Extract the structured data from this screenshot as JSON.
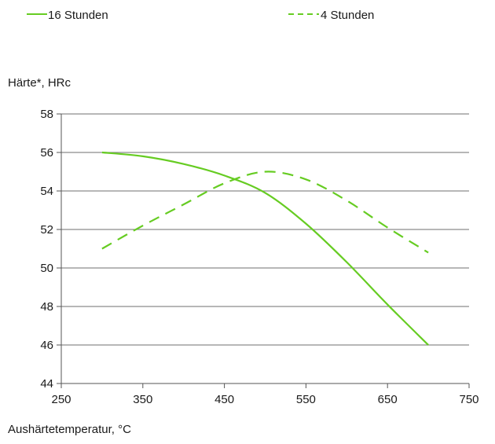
{
  "chart_data": {
    "type": "line",
    "ylabel": "Härte*, HRc",
    "xlabel": "Aushärtetemperatur, °C",
    "xlim": [
      250,
      750
    ],
    "ylim": [
      44,
      58
    ],
    "x_ticks": [
      250,
      350,
      450,
      550,
      650,
      750
    ],
    "y_ticks": [
      44,
      46,
      48,
      50,
      52,
      54,
      56,
      58
    ],
    "grid": "horizontal",
    "legend_position": "top",
    "series": [
      {
        "name": "16 Stunden",
        "style": "solid",
        "color": "#66cc22",
        "x": [
          300,
          350,
          400,
          450,
          500,
          550,
          600,
          650,
          700
        ],
        "y": [
          56.0,
          55.8,
          55.4,
          54.8,
          53.9,
          52.3,
          50.3,
          48.1,
          46.0
        ]
      },
      {
        "name": "4 Stunden",
        "style": "dashed",
        "color": "#66cc22",
        "x": [
          300,
          350,
          400,
          450,
          500,
          550,
          600,
          650,
          700
        ],
        "y": [
          51.0,
          52.2,
          53.3,
          54.4,
          55.0,
          54.6,
          53.5,
          52.1,
          50.8
        ]
      }
    ]
  }
}
